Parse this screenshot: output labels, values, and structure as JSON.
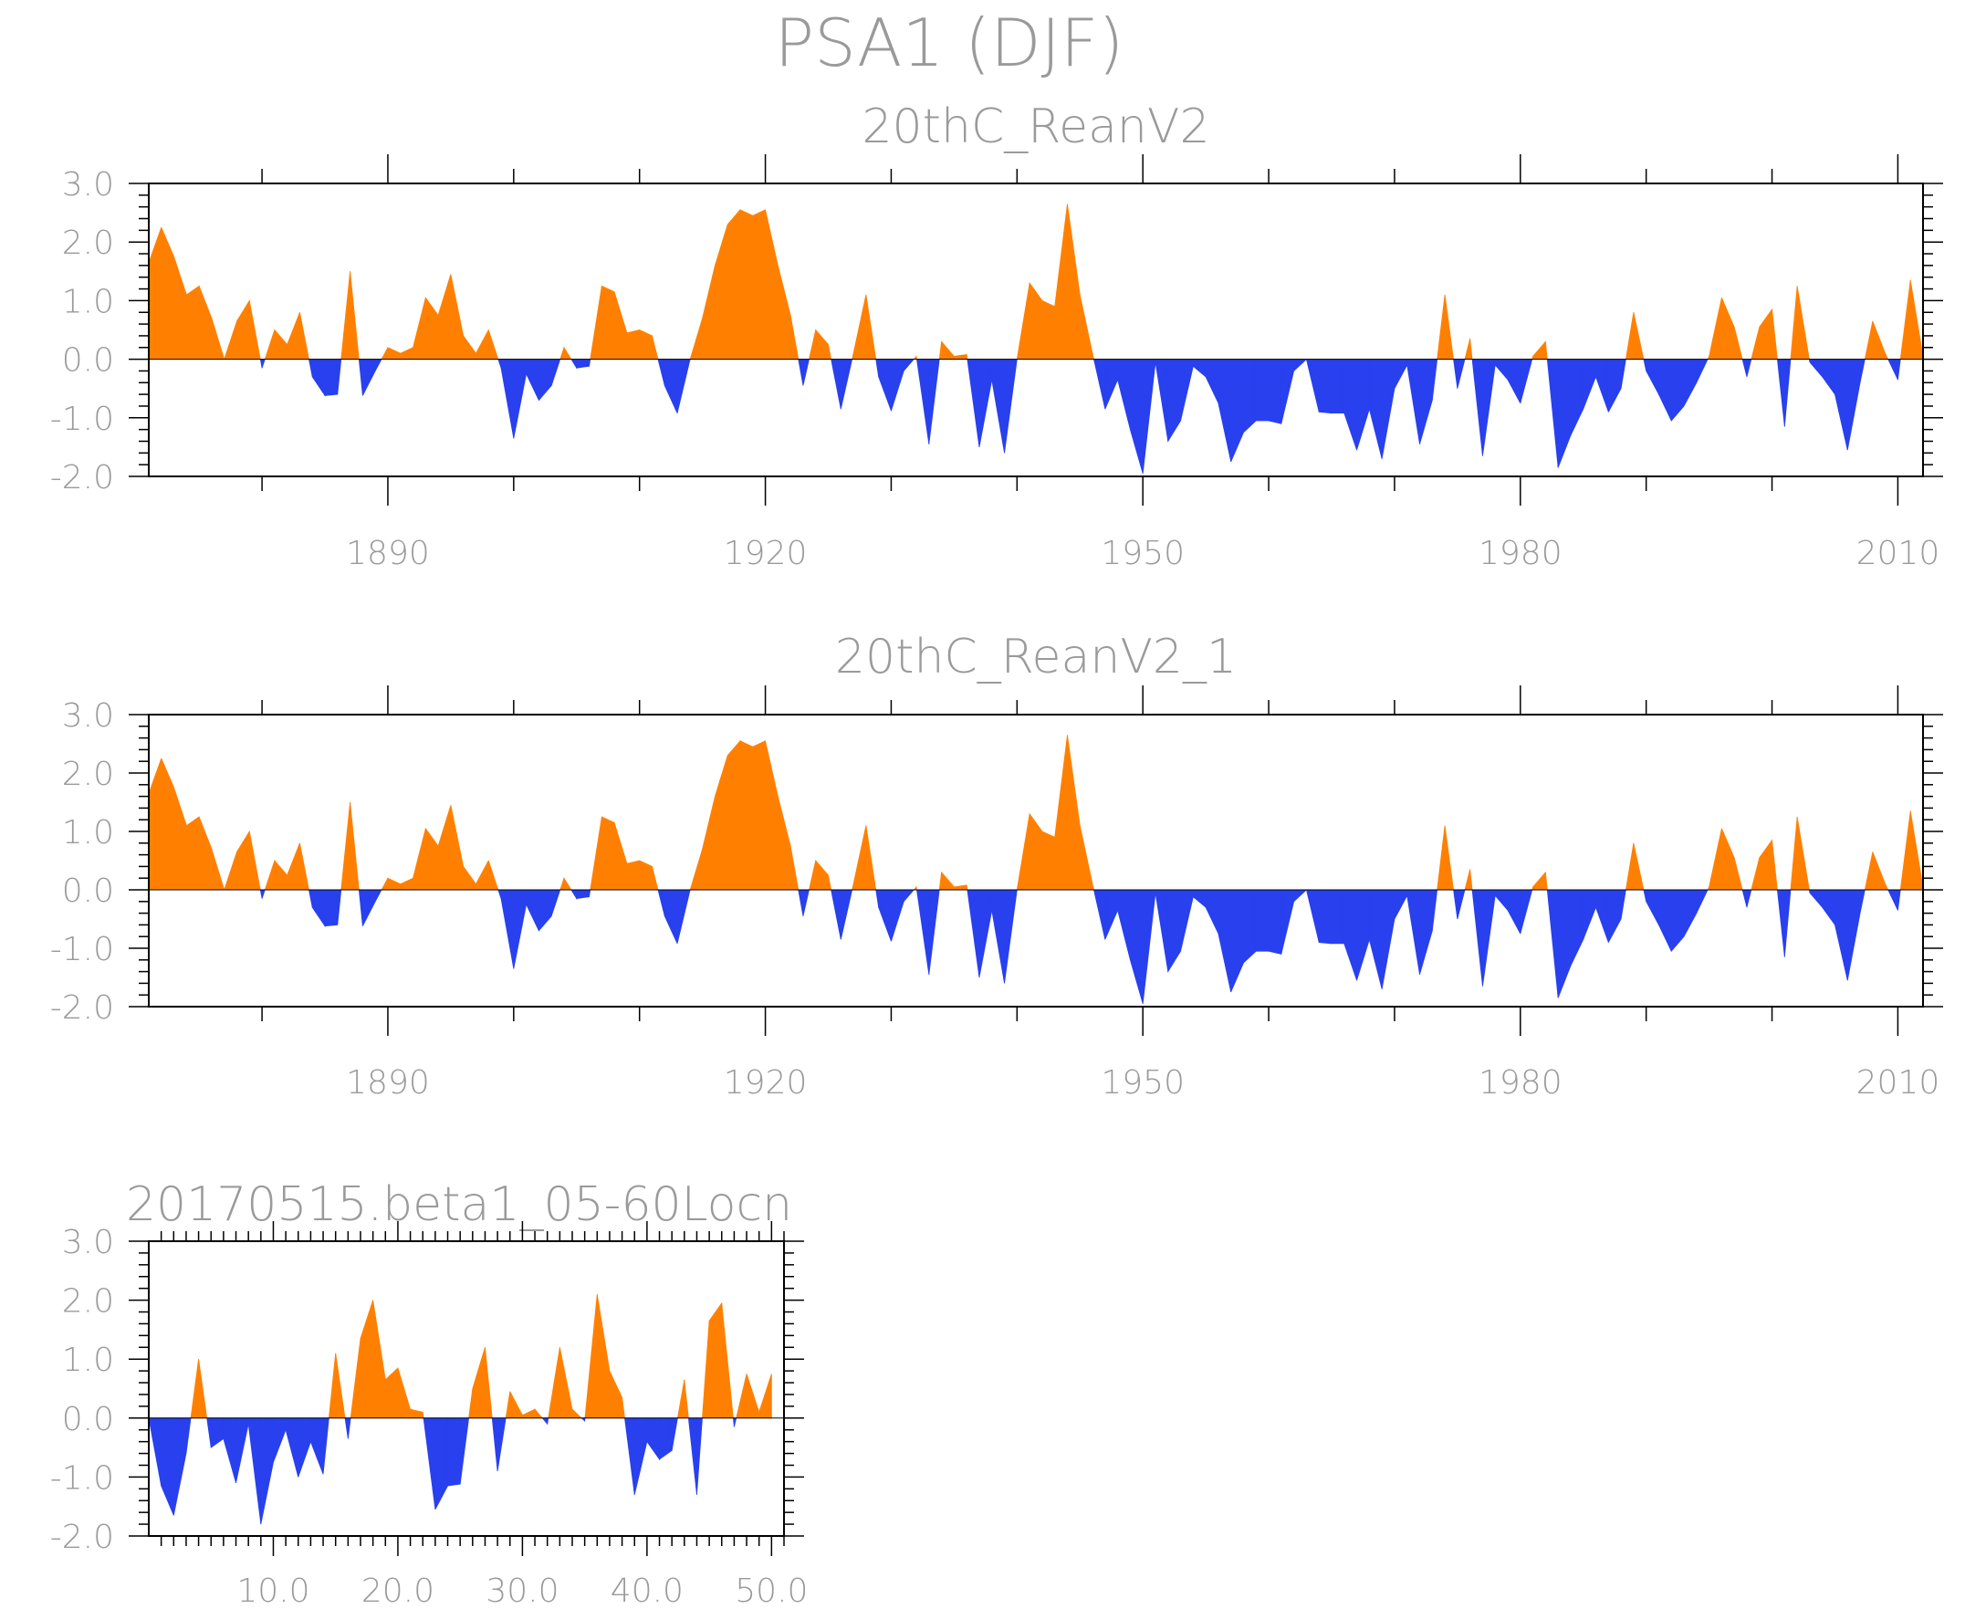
{
  "figure": {
    "title": "PSA1 (DJF)"
  },
  "colors": {
    "positive": "#ff8000",
    "negative": "#2840ee",
    "axis": "#000000",
    "text": "#9a9a9a"
  },
  "chart_data": [
    {
      "type": "area",
      "title": "20thC_ReanV2",
      "xlabel": "",
      "ylabel": "",
      "xlim": [
        1871,
        2012
      ],
      "ylim": [
        -2.0,
        3.0
      ],
      "xticks": [
        "1890",
        "1920",
        "1950",
        "1980",
        "2010"
      ],
      "yticks": [
        "3.0",
        "2.0",
        "1.0",
        "0.0",
        "-1.0",
        "-2.0"
      ],
      "x_start": 1871,
      "values": [
        1.65,
        2.25,
        1.75,
        1.1,
        1.25,
        0.7,
        0.0,
        0.65,
        1.0,
        -0.15,
        0.5,
        0.25,
        0.8,
        -0.3,
        -0.62,
        -0.6,
        1.5,
        -0.62,
        -0.2,
        0.2,
        0.1,
        0.2,
        1.05,
        0.75,
        1.45,
        0.4,
        0.1,
        0.5,
        -0.15,
        -1.35,
        -0.25,
        -0.7,
        -0.45,
        0.2,
        -0.15,
        -0.12,
        1.25,
        1.15,
        0.45,
        0.5,
        0.4,
        -0.45,
        -0.92,
        -0.02,
        0.7,
        1.6,
        2.3,
        2.55,
        2.45,
        2.55,
        1.6,
        0.75,
        -0.45,
        0.5,
        0.25,
        -0.85,
        0.1,
        1.1,
        -0.3,
        -0.88,
        -0.2,
        0.05,
        -1.45,
        0.3,
        0.05,
        0.08,
        -1.5,
        -0.35,
        -1.6,
        0.0,
        1.3,
        1.0,
        0.9,
        2.65,
        1.1,
        0.1,
        -0.85,
        -0.35,
        -1.2,
        -1.95,
        -0.05,
        -1.4,
        -1.05,
        -0.12,
        -0.3,
        -0.75,
        -1.75,
        -1.25,
        -1.05,
        -1.05,
        -1.1,
        -0.2,
        0.0,
        -0.9,
        -0.92,
        -0.92,
        -1.55,
        -0.85,
        -1.7,
        -0.5,
        -0.1,
        -1.45,
        -0.7,
        1.1,
        -0.5,
        0.35,
        -1.65,
        -0.1,
        -0.35,
        -0.75,
        0.05,
        0.3,
        -1.85,
        -1.3,
        -0.85,
        -0.3,
        -0.9,
        -0.5,
        0.8,
        -0.2,
        -0.6,
        -1.05,
        -0.8,
        -0.4,
        0.05,
        1.05,
        0.55,
        -0.3,
        0.55,
        0.85,
        -1.15,
        1.25,
        -0.05,
        -0.3,
        -0.6,
        -1.55,
        -0.4,
        0.65,
        0.1,
        -0.35,
        1.35,
        0.05
      ]
    },
    {
      "type": "area",
      "title": "20thC_ReanV2_1",
      "xlabel": "",
      "ylabel": "",
      "xlim": [
        1871,
        2012
      ],
      "ylim": [
        -2.0,
        3.0
      ],
      "xticks": [
        "1890",
        "1920",
        "1950",
        "1980",
        "2010"
      ],
      "yticks": [
        "3.0",
        "2.0",
        "1.0",
        "0.0",
        "-1.0",
        "-2.0"
      ],
      "x_start": 1871,
      "values": [
        1.65,
        2.25,
        1.75,
        1.1,
        1.25,
        0.7,
        0.0,
        0.65,
        1.0,
        -0.15,
        0.5,
        0.25,
        0.8,
        -0.3,
        -0.62,
        -0.6,
        1.5,
        -0.62,
        -0.2,
        0.2,
        0.1,
        0.2,
        1.05,
        0.75,
        1.45,
        0.4,
        0.1,
        0.5,
        -0.15,
        -1.35,
        -0.25,
        -0.7,
        -0.45,
        0.2,
        -0.15,
        -0.12,
        1.25,
        1.15,
        0.45,
        0.5,
        0.4,
        -0.45,
        -0.92,
        -0.02,
        0.7,
        1.6,
        2.3,
        2.55,
        2.45,
        2.55,
        1.6,
        0.75,
        -0.45,
        0.5,
        0.25,
        -0.85,
        0.1,
        1.1,
        -0.3,
        -0.88,
        -0.2,
        0.05,
        -1.45,
        0.3,
        0.05,
        0.08,
        -1.5,
        -0.35,
        -1.6,
        0.0,
        1.3,
        1.0,
        0.9,
        2.65,
        1.1,
        0.1,
        -0.85,
        -0.35,
        -1.2,
        -1.95,
        -0.05,
        -1.4,
        -1.05,
        -0.12,
        -0.3,
        -0.75,
        -1.75,
        -1.25,
        -1.05,
        -1.05,
        -1.1,
        -0.2,
        0.0,
        -0.9,
        -0.92,
        -0.92,
        -1.55,
        -0.85,
        -1.7,
        -0.5,
        -0.1,
        -1.45,
        -0.7,
        1.1,
        -0.5,
        0.35,
        -1.65,
        -0.1,
        -0.35,
        -0.75,
        0.05,
        0.3,
        -1.85,
        -1.3,
        -0.85,
        -0.3,
        -0.9,
        -0.5,
        0.8,
        -0.2,
        -0.6,
        -1.05,
        -0.8,
        -0.4,
        0.05,
        1.05,
        0.55,
        -0.3,
        0.55,
        0.85,
        -1.15,
        1.25,
        -0.05,
        -0.3,
        -0.6,
        -1.55,
        -0.4,
        0.65,
        0.1,
        -0.35,
        1.35,
        0.05
      ]
    },
    {
      "type": "area",
      "title": "20170515.beta1_05-60Locn",
      "xlabel": "",
      "ylabel": "",
      "xlim": [
        0,
        51
      ],
      "ylim": [
        -2.0,
        3.0
      ],
      "xticks": [
        "10.0",
        "20.0",
        "30.0",
        "40.0",
        "50.0"
      ],
      "yticks": [
        "3.0",
        "2.0",
        "1.0",
        "0.0",
        "-1.0",
        "-2.0"
      ],
      "x_start": 0,
      "values": [
        0.0,
        -1.15,
        -1.65,
        -0.6,
        1.0,
        -0.5,
        -0.35,
        -1.1,
        -0.1,
        -1.8,
        -0.75,
        -0.2,
        -1.0,
        -0.4,
        -0.95,
        1.1,
        -0.35,
        1.35,
        2.0,
        0.65,
        0.85,
        0.15,
        0.1,
        -1.55,
        -1.15,
        -1.12,
        0.5,
        1.2,
        -0.9,
        0.45,
        0.05,
        0.15,
        -0.1,
        1.2,
        0.15,
        -0.05,
        2.1,
        0.8,
        0.35,
        -1.3,
        -0.4,
        -0.7,
        -0.55,
        0.65,
        -1.3,
        1.65,
        1.95,
        -0.15,
        0.75,
        0.1,
        0.75
      ]
    }
  ]
}
